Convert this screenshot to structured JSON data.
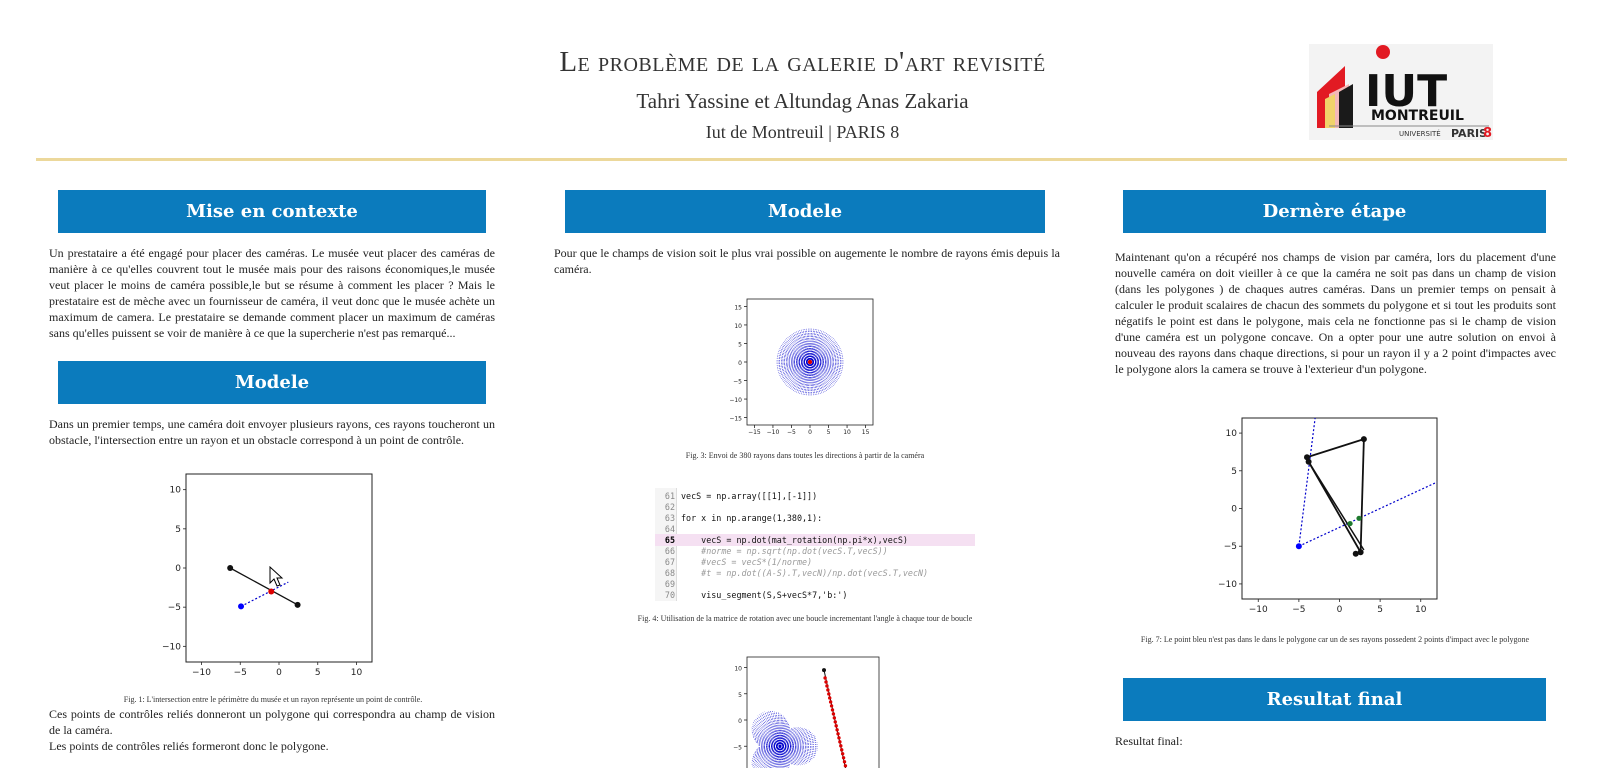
{
  "header": {
    "title": "Le problème de la galerie d'art revisité",
    "authors": "Tahri Yassine et Altundag Anas Zakaria",
    "affiliation": "Iut de Montreuil | PARIS 8"
  },
  "logo": {
    "main": "IUT",
    "sub": "MONTREUIL",
    "small": "UNIVERSITÉ",
    "paris": "PARIS",
    "eight": "8"
  },
  "col1": {
    "section1_title": "Mise en contexte",
    "section1_text": "Un prestataire a été engagé pour placer des caméras. Le musée veut placer des caméras de manière à ce qu'elles couvrent tout le musée mais pour des raisons économiques,le musée veut placer le moins de caméra possible,le but se résume à comment les placer ? Mais le prestataire est de mèche avec un fournisseur de caméra, il veut donc que le musée achète un maximum de camera. Le prestataire se demande comment placer un maximum de caméras sans qu'elles puissent se voir de manière à ce que la supercherie n'est pas remarqué...",
    "section2_title": "Modele",
    "section2_text": "Dans un premier temps, une caméra doit envoyer plusieurs rayons, ces rayons toucheront un obstacle, l'intersection entre un rayon et un obstacle correspond à un point de contrôle.",
    "fig1_caption": "Fig. 1: L'intersection entre le périmètre du musée et un rayon représente un point de contrôle.",
    "after_text_1": "Ces points de contrôles reliés donneront un polygone qui correspondra au champ de vision de la caméra.",
    "after_text_2": "Les points de contrôles reliés formeront donc le polygone."
  },
  "col2": {
    "section_title": "Modele",
    "text": "Pour que le champs de vision soit le plus vrai possible on augemente le nombre de rayons émis depuis la caméra.",
    "fig3_caption": "Fig. 3: Envoi de 380 rayons dans toutes les directions à partir de la caméra",
    "fig4_caption": "Fig. 4: Utilisation de la matrice de rotation avec une boucle incrementant l'angle à chaque tour de boucle",
    "code": [
      {
        "n": "61",
        "t": "vecS = np.array([[1],[-1]])"
      },
      {
        "n": "62",
        "t": ""
      },
      {
        "n": "63",
        "t": "for x in np.arange(1,380,1):"
      },
      {
        "n": "64",
        "t": ""
      },
      {
        "n": "65",
        "t": "    vecS = np.dot(mat_rotation(np.pi*x),vecS)"
      },
      {
        "n": "66",
        "t": "    #norme = np.sqrt(np.dot(vecS.T,vecS))"
      },
      {
        "n": "67",
        "t": "    #vecS = vecS*(1/norme)"
      },
      {
        "n": "68",
        "t": "    #t = np.dot((A-S).T,vecN)/np.dot(vecS.T,vecN)"
      },
      {
        "n": "69",
        "t": ""
      },
      {
        "n": "70",
        "t": "    visu_segment(S,S+vecS*7,'b:')"
      }
    ]
  },
  "col3": {
    "section1_title": "Dernère étape",
    "section1_text": "Maintenant qu'on a récupéré nos champs de vision par caméra, lors du placement d'une nouvelle caméra on doit vieiller à ce que la caméra ne soit pas dans un champ de vision (dans les polygones ) de chaques autres caméras. Dans un premier temps on pensait à calculer le produit scalaires de chacun des sommets du polygone et si tout les produits sont négatifs le point est dans le polygone, mais cela ne fonctionne pas si le champ de vision d'une caméra est un polygone concave. On a opter pour une autre solution on envoi à nouveau des rayons dans chaque directions, si pour un rayon il y a 2 point d'impactes avec le polygone alors la camera se trouve à l'exterieur d'un polygone.",
    "fig7_caption": "Fig. 7: Le point bleu n'est pas dans le dans le polygone car un de ses rayons possedent 2 points d'impact avec le polygone",
    "section2_title": "Resultat final",
    "section2_text": "Resultat final:"
  },
  "colors": {
    "bar": "#0b7bbd",
    "rule": "#ecd89b",
    "ray": "#0000cc",
    "camera": "#0000ff",
    "hit": "#dd0000"
  },
  "chart_data": [
    {
      "type": "scatter",
      "title": "",
      "xticks": [
        "−10",
        "−5",
        "0",
        "5",
        "10"
      ],
      "yticks": [
        "10",
        "5",
        "0",
        "−5",
        "−10"
      ],
      "xlim": [
        -12,
        12
      ],
      "ylim": [
        -12,
        12
      ],
      "wall": [
        [
          -6.3,
          0
        ],
        [
          2.4,
          -4.7
        ]
      ],
      "camera": [
        -4.9,
        -4.9
      ],
      "intersection": [
        -1,
        -3
      ]
    },
    {
      "type": "line",
      "title": "",
      "xticks": [
        "−15",
        "−10",
        "−5",
        "0",
        "5",
        "10",
        "15"
      ],
      "yticks": [
        "15",
        "10",
        "5",
        "0",
        "−5",
        "−10",
        "−15"
      ],
      "xlim": [
        -17,
        17
      ],
      "ylim": [
        -17,
        17
      ],
      "camera": [
        0,
        0
      ],
      "rays": 380,
      "radius": 9
    },
    {
      "type": "line",
      "title": "",
      "yticks": [
        "10",
        "5",
        "0",
        "−5"
      ],
      "xlim": [
        -12,
        12
      ],
      "ylim": [
        -12,
        12
      ]
    },
    {
      "type": "scatter",
      "title": "",
      "xticks": [
        "−10",
        "−5",
        "0",
        "5",
        "10"
      ],
      "yticks": [
        "10",
        "5",
        "0",
        "−5",
        "−10"
      ],
      "xlim": [
        -12,
        12
      ],
      "ylim": [
        -12,
        12
      ],
      "polygon": [
        [
          -4,
          6.8
        ],
        [
          3,
          9.2
        ],
        [
          2.6,
          -5.8
        ],
        [
          -3.8,
          6.2
        ]
      ],
      "blue_point": [
        -5,
        -5
      ],
      "green_points": [
        [
          1.3,
          -2
        ],
        [
          2.4,
          -1.3
        ]
      ]
    }
  ]
}
